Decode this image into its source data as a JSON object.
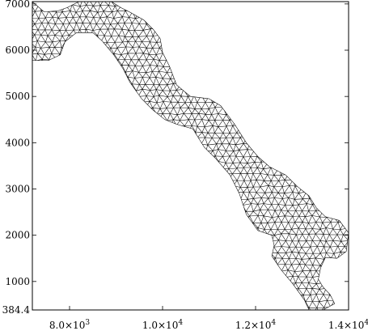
{
  "chart_data": {
    "type": "mesh",
    "xlim": [
      7200,
      14000
    ],
    "ylim": [
      384.4,
      7050
    ],
    "x_ticks": [
      {
        "value": 8000,
        "label": "8.0×10³",
        "mant": "8.0×10",
        "exp": "3"
      },
      {
        "value": 10000,
        "label": "1.0×10⁴",
        "mant": "1.0×10",
        "exp": "4"
      },
      {
        "value": 12000,
        "label": "1.2×10⁴",
        "mant": "1.2×10",
        "exp": "4"
      },
      {
        "value": 14000,
        "label": "1.4×10⁴",
        "mant": "1.4×10",
        "exp": "4"
      }
    ],
    "y_ticks": [
      {
        "value": 7000,
        "label": "7000"
      },
      {
        "value": 6000,
        "label": "6000"
      },
      {
        "value": 5000,
        "label": "5000"
      },
      {
        "value": 4000,
        "label": "4000"
      },
      {
        "value": 3000,
        "label": "3000"
      },
      {
        "value": 2000,
        "label": "2000"
      },
      {
        "value": 1000,
        "label": "1000"
      },
      {
        "value": 384.4,
        "label": "384.4"
      }
    ],
    "domain_outline": [
      [
        7200,
        7050
      ],
      [
        7450,
        6830
      ],
      [
        7750,
        6850
      ],
      [
        7950,
        6920
      ],
      [
        8200,
        7050
      ],
      [
        8900,
        7050
      ],
      [
        9100,
        6920
      ],
      [
        9300,
        6820
      ],
      [
        9600,
        6650
      ],
      [
        9800,
        6450
      ],
      [
        9950,
        6250
      ],
      [
        10000,
        5950
      ],
      [
        10150,
        5650
      ],
      [
        10300,
        5250
      ],
      [
        10600,
        5000
      ],
      [
        11000,
        4950
      ],
      [
        11250,
        4800
      ],
      [
        11550,
        4400
      ],
      [
        11800,
        4000
      ],
      [
        12050,
        3700
      ],
      [
        12300,
        3480
      ],
      [
        12650,
        3300
      ],
      [
        12900,
        3050
      ],
      [
        13150,
        2850
      ],
      [
        13300,
        2600
      ],
      [
        13500,
        2400
      ],
      [
        13800,
        2320
      ],
      [
        14000,
        2050
      ],
      [
        13950,
        1650
      ],
      [
        13750,
        1500
      ],
      [
        13500,
        1520
      ],
      [
        13400,
        1300
      ],
      [
        13350,
        1050
      ],
      [
        13450,
        880
      ],
      [
        13600,
        720
      ],
      [
        13700,
        520
      ],
      [
        13450,
        384.4
      ],
      [
        13150,
        384.4
      ],
      [
        13050,
        600
      ],
      [
        12800,
        950
      ],
      [
        12550,
        1250
      ],
      [
        12350,
        1550
      ],
      [
        12400,
        1780
      ],
      [
        12350,
        2000
      ],
      [
        12050,
        2100
      ],
      [
        11800,
        2450
      ],
      [
        11650,
        2900
      ],
      [
        11450,
        3300
      ],
      [
        11150,
        3650
      ],
      [
        10900,
        3900
      ],
      [
        10650,
        4300
      ],
      [
        10300,
        4400
      ],
      [
        10050,
        4500
      ],
      [
        9800,
        4700
      ],
      [
        9550,
        4950
      ],
      [
        9300,
        5300
      ],
      [
        9150,
        5600
      ],
      [
        8950,
        5900
      ],
      [
        8700,
        6200
      ],
      [
        8500,
        6380
      ],
      [
        8150,
        6380
      ],
      [
        7900,
        6180
      ],
      [
        7800,
        5900
      ],
      [
        7550,
        5780
      ],
      [
        7200,
        5780
      ]
    ]
  }
}
